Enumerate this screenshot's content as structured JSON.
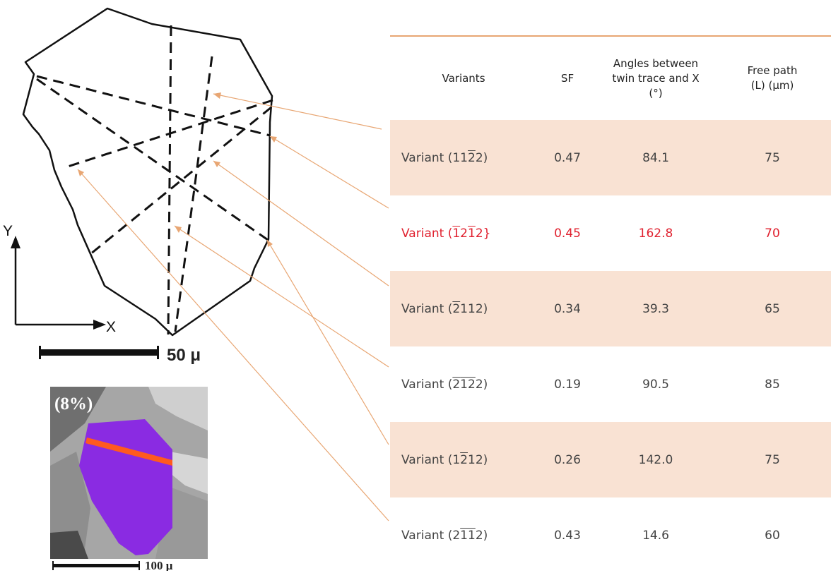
{
  "schematic": {
    "axis_y_label": "Y",
    "axis_x_label": "X",
    "scale_label": "50 μ"
  },
  "inset": {
    "strain_label": "(8%)",
    "scale_label": "100 μ"
  },
  "table": {
    "headers": {
      "variants": "Variants",
      "sf": "SF",
      "angle_line1": "Angles between",
      "angle_line2": "twin trace and X",
      "angle_line3": "(°)",
      "free_path_line1": "Free path",
      "free_path_line2": "(L) (μm)"
    },
    "rows": [
      {
        "prefix": "Variant (",
        "idx": [
          "1",
          "1",
          "2",
          "2"
        ],
        "bars": [
          false,
          false,
          true,
          false
        ],
        "suffix": ")",
        "sf": "0.47",
        "angle": "84.1",
        "free_path": "75"
      },
      {
        "prefix": "Variant (",
        "idx": [
          "1",
          "2",
          "1",
          "2"
        ],
        "bars": [
          true,
          false,
          true,
          false
        ],
        "suffix": "}",
        "sf": "0.45",
        "angle": "162.8",
        "free_path": "70"
      },
      {
        "prefix": "Variant (",
        "idx": [
          "2",
          "1",
          "1",
          "2"
        ],
        "bars": [
          true,
          false,
          false,
          false
        ],
        "suffix": ")",
        "sf": "0.34",
        "angle": "39.3",
        "free_path": "65"
      },
      {
        "prefix": "Variant (",
        "idx": [
          "2",
          "1",
          "2",
          "2"
        ],
        "bars": [
          true,
          true,
          true,
          false
        ],
        "suffix": ")",
        "sf": "0.19",
        "angle": "90.5",
        "free_path": "85"
      },
      {
        "prefix": "Variant (",
        "idx": [
          "1",
          "2",
          "1",
          "2"
        ],
        "bars": [
          false,
          true,
          false,
          false
        ],
        "suffix": ")",
        "sf": "0.26",
        "angle": "142.0",
        "free_path": "75"
      },
      {
        "prefix": "Variant (",
        "idx": [
          "2",
          "1",
          "1",
          "2"
        ],
        "bars": [
          false,
          true,
          true,
          false
        ],
        "suffix": ")",
        "sf": "0.43",
        "angle": "14.6",
        "free_path": "60"
      }
    ],
    "highlight_row": 1,
    "shaded_rows": [
      0,
      2,
      4
    ]
  },
  "colors": {
    "row_shade": "#f9e2d3",
    "header_rule": "#e8a673",
    "highlight_text": "#e0202e",
    "arrow": "#e8a673",
    "grain_fill": "#8a2be2",
    "twin_band": "#ff5a1f"
  }
}
